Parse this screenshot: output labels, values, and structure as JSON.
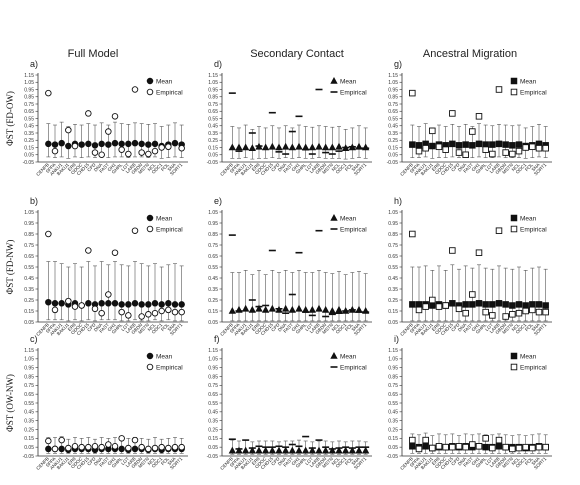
{
  "column_titles": [
    "Full Model",
    "Secondary Contact",
    "Ancestral Migration"
  ],
  "row_labels": [
    "ΦST (FD-OW)",
    "ΦST (FD-NW)",
    "ΦST (OW-NW)"
  ],
  "panel_letters": [
    "a)",
    "b)",
    "c)",
    "d)",
    "e)",
    "f)",
    "g)",
    "h)",
    "i)"
  ],
  "legend_empirical": "Empirical",
  "legend_mean": "Mean",
  "loci": [
    "CENPB",
    "SPPA",
    "ANKU1",
    "BAKU1",
    "ER8",
    "ODOC",
    "CHD15",
    "CPD",
    "DNA",
    "FAST",
    "GH1",
    "GHRL",
    "LGT",
    "LARB",
    "GBDN",
    "MSTN",
    "NCL",
    "ODC1",
    "POL",
    "SNA",
    "SORT1"
  ],
  "colors": {
    "marker": "#111111",
    "whisker": "#555555",
    "axis": "#333333"
  },
  "chart_data": [
    {
      "panel": "a)",
      "type": "scatter",
      "marker": "circle",
      "xlabel": "",
      "ylabel": "ΦST (FD-OW)",
      "ylim": [
        -0.05,
        1.15
      ],
      "yticks": [
        "1.15",
        "1.05",
        "0.95",
        "0.85",
        "0.75",
        "0.65",
        "0.55",
        "0.45",
        "0.35",
        "0.25",
        "0.15",
        "0.05",
        "-0.05"
      ],
      "series": [
        {
          "name": "Mean",
          "values": [
            0.2,
            0.19,
            0.21,
            0.17,
            0.2,
            0.19,
            0.2,
            0.18,
            0.2,
            0.19,
            0.21,
            0.2,
            0.2,
            0.21,
            0.2,
            0.19,
            0.2,
            0.17,
            0.19,
            0.21,
            0.19
          ]
        },
        {
          "name": "Empirical",
          "values": [
            0.9,
            0.1,
            null,
            0.39,
            0.17,
            null,
            0.62,
            0.08,
            0.05,
            0.37,
            0.58,
            0.12,
            0.06,
            0.95,
            0.08,
            0.06,
            0.1,
            0.15,
            0.16,
            null,
            0.14
          ]
        }
      ],
      "upper": [
        0.48,
        0.46,
        0.5,
        0.44,
        0.47,
        0.46,
        0.48,
        0.46,
        0.49,
        0.46,
        0.5,
        0.48,
        0.47,
        0.49,
        0.48,
        0.47,
        0.48,
        0.44,
        0.46,
        0.49,
        0.46
      ],
      "lower": [
        0.02,
        0.01,
        0.02,
        0.0,
        0.02,
        0.01,
        0.02,
        0.01,
        0.02,
        0.01,
        0.02,
        0.02,
        0.01,
        0.02,
        0.02,
        0.01,
        0.02,
        0.0,
        0.01,
        0.02,
        0.01
      ]
    },
    {
      "panel": "b)",
      "type": "scatter",
      "marker": "circle",
      "xlabel": "",
      "ylabel": "ΦST (FD-NW)",
      "ylim": [
        0.05,
        1.05
      ],
      "yticks": [
        "1.05",
        "0.95",
        "0.85",
        "0.75",
        "0.65",
        "0.55",
        "0.45",
        "0.35",
        "0.25",
        "0.15",
        "0.05"
      ],
      "series": [
        {
          "name": "Mean",
          "values": [
            0.23,
            0.22,
            0.22,
            0.21,
            0.22,
            0.2,
            0.22,
            0.21,
            0.22,
            0.22,
            0.22,
            0.21,
            0.21,
            0.22,
            0.21,
            0.21,
            0.22,
            0.21,
            0.22,
            0.21,
            0.21
          ]
        },
        {
          "name": "Empirical",
          "values": [
            0.85,
            0.16,
            null,
            0.24,
            0.19,
            0.2,
            0.7,
            0.17,
            0.13,
            0.3,
            0.68,
            0.14,
            0.11,
            0.88,
            0.1,
            0.12,
            0.13,
            0.15,
            0.16,
            0.14,
            0.14
          ]
        }
      ],
      "upper": [
        0.6,
        0.6,
        0.58,
        0.55,
        0.58,
        0.55,
        0.6,
        0.56,
        0.6,
        0.57,
        0.6,
        0.57,
        0.56,
        0.6,
        0.58,
        0.56,
        0.58,
        0.55,
        0.57,
        0.58,
        0.56
      ],
      "lower": [
        0.07,
        0.07,
        0.07,
        0.06,
        0.07,
        0.06,
        0.07,
        0.06,
        0.07,
        0.07,
        0.07,
        0.06,
        0.06,
        0.07,
        0.06,
        0.06,
        0.07,
        0.06,
        0.07,
        0.06,
        0.06
      ]
    },
    {
      "panel": "c)",
      "type": "scatter",
      "marker": "circle",
      "xlabel": "",
      "ylabel": "ΦST (OW-NW)",
      "ylim": [
        -0.05,
        1.15
      ],
      "yticks": [
        "1.15",
        "1.05",
        "0.95",
        "0.85",
        "0.75",
        "0.65",
        "0.55",
        "0.45",
        "0.35",
        "0.25",
        "0.15",
        "0.05",
        "-0.05"
      ],
      "series": [
        {
          "name": "Mean",
          "values": [
            0.03,
            0.03,
            0.03,
            0.02,
            0.03,
            0.03,
            0.03,
            0.02,
            0.03,
            0.03,
            0.03,
            0.03,
            0.02,
            0.03,
            0.03,
            0.02,
            0.03,
            0.02,
            0.03,
            0.03,
            0.03
          ]
        },
        {
          "name": "Empirical",
          "values": [
            0.12,
            0.03,
            0.13,
            0.04,
            0.06,
            0.05,
            0.05,
            0.06,
            0.05,
            0.08,
            0.06,
            0.15,
            0.04,
            0.13,
            0.05,
            0.03,
            0.04,
            0.05,
            0.04,
            0.05,
            0.05
          ]
        }
      ],
      "upper": [
        0.16,
        0.16,
        0.17,
        0.14,
        0.16,
        0.15,
        0.16,
        0.14,
        0.16,
        0.15,
        0.16,
        0.15,
        0.15,
        0.16,
        0.15,
        0.14,
        0.16,
        0.14,
        0.15,
        0.16,
        0.15
      ],
      "lower": [
        -0.02,
        -0.02,
        -0.02,
        -0.02,
        -0.02,
        -0.02,
        -0.02,
        -0.02,
        -0.02,
        -0.02,
        -0.02,
        -0.02,
        -0.02,
        -0.02,
        -0.02,
        -0.02,
        -0.02,
        -0.02,
        -0.02,
        -0.02,
        -0.02
      ]
    },
    {
      "panel": "d)",
      "type": "scatter",
      "marker": "triangle",
      "xlabel": "",
      "ylabel": "",
      "ylim": [
        -0.05,
        1.15
      ],
      "yticks": [
        "1.15",
        "1.05",
        "0.95",
        "0.85",
        "0.75",
        "0.65",
        "0.55",
        "0.45",
        "0.35",
        "0.25",
        "0.15",
        "0.05",
        "-0.05"
      ],
      "series": [
        {
          "name": "Mean",
          "values": [
            0.15,
            0.15,
            0.15,
            0.14,
            0.16,
            0.15,
            0.16,
            0.15,
            0.16,
            0.15,
            0.16,
            0.15,
            0.15,
            0.16,
            0.15,
            0.15,
            0.16,
            0.14,
            0.15,
            0.16,
            0.15
          ]
        },
        {
          "name": "Empirical",
          "values": [
            0.9,
            0.1,
            null,
            0.35,
            0.17,
            null,
            0.63,
            0.09,
            0.06,
            0.37,
            0.58,
            0.12,
            0.06,
            0.95,
            0.08,
            0.06,
            0.1,
            0.15,
            0.16,
            0.14,
            0.14
          ]
        }
      ],
      "upper": [
        0.44,
        0.42,
        0.46,
        0.4,
        0.44,
        0.42,
        0.45,
        0.42,
        0.45,
        0.42,
        0.46,
        0.44,
        0.43,
        0.45,
        0.44,
        0.43,
        0.44,
        0.4,
        0.42,
        0.45,
        0.42
      ],
      "lower": [
        0.0,
        0.0,
        0.01,
        -0.01,
        0.0,
        0.0,
        0.01,
        0.0,
        0.01,
        0.0,
        0.01,
        0.0,
        0.0,
        0.01,
        0.0,
        0.0,
        0.0,
        -0.01,
        0.0,
        0.01,
        0.0
      ]
    },
    {
      "panel": "e)",
      "type": "scatter",
      "marker": "triangle",
      "xlabel": "",
      "ylabel": "",
      "ylim": [
        0.05,
        1.05
      ],
      "yticks": [
        "1.05",
        "0.95",
        "0.85",
        "0.75",
        "0.65",
        "0.55",
        "0.45",
        "0.35",
        "0.25",
        "0.15",
        "0.05"
      ],
      "series": [
        {
          "name": "Mean",
          "values": [
            0.15,
            0.16,
            0.17,
            0.16,
            0.17,
            0.16,
            0.17,
            0.16,
            0.17,
            0.16,
            0.17,
            0.16,
            0.16,
            0.17,
            0.16,
            0.15,
            0.16,
            0.15,
            0.16,
            0.16,
            0.15
          ]
        },
        {
          "name": "Empirical",
          "values": [
            0.84,
            0.15,
            null,
            0.25,
            0.19,
            0.2,
            0.7,
            0.17,
            0.13,
            0.3,
            0.68,
            0.14,
            0.11,
            0.88,
            0.1,
            0.12,
            0.13,
            0.15,
            0.16,
            0.14,
            0.14
          ]
        }
      ],
      "upper": [
        0.5,
        0.5,
        0.52,
        0.48,
        0.52,
        0.48,
        0.52,
        0.5,
        0.52,
        0.5,
        0.52,
        0.5,
        0.5,
        0.52,
        0.5,
        0.49,
        0.51,
        0.48,
        0.5,
        0.51,
        0.49
      ],
      "lower": [
        0.06,
        0.06,
        0.06,
        0.06,
        0.06,
        0.06,
        0.06,
        0.06,
        0.06,
        0.06,
        0.06,
        0.06,
        0.06,
        0.06,
        0.06,
        0.06,
        0.06,
        0.06,
        0.06,
        0.06,
        0.06
      ]
    },
    {
      "panel": "f)",
      "type": "scatter",
      "marker": "triangle",
      "xlabel": "",
      "ylabel": "",
      "ylim": [
        -0.05,
        1.15
      ],
      "yticks": [
        "1.15",
        "1.05",
        "0.95",
        "0.85",
        "0.75",
        "0.65",
        "0.55",
        "0.45",
        "0.35",
        "0.25",
        "0.15",
        "0.05",
        "-0.05"
      ],
      "series": [
        {
          "name": "Mean",
          "values": [
            0.01,
            0.01,
            0.01,
            0.01,
            0.01,
            0.01,
            0.01,
            0.01,
            0.01,
            0.01,
            0.01,
            0.01,
            0.01,
            0.01,
            0.01,
            0.01,
            0.01,
            0.01,
            0.01,
            0.01,
            0.01
          ]
        },
        {
          "name": "Empirical",
          "values": [
            0.14,
            0.03,
            0.13,
            0.04,
            0.06,
            0.05,
            0.05,
            0.06,
            0.05,
            0.08,
            0.06,
            0.17,
            0.04,
            0.13,
            0.05,
            0.03,
            0.04,
            0.05,
            0.04,
            0.05,
            0.05
          ]
        }
      ],
      "upper": [
        0.13,
        0.12,
        0.13,
        0.11,
        0.12,
        0.12,
        0.12,
        0.11,
        0.12,
        0.12,
        0.13,
        0.12,
        0.11,
        0.12,
        0.12,
        0.11,
        0.12,
        0.11,
        0.12,
        0.12,
        0.11
      ],
      "lower": [
        -0.03,
        -0.03,
        -0.03,
        -0.03,
        -0.03,
        -0.03,
        -0.03,
        -0.03,
        -0.03,
        -0.03,
        -0.03,
        -0.03,
        -0.03,
        -0.03,
        -0.03,
        -0.03,
        -0.03,
        -0.03,
        -0.03,
        -0.03,
        -0.03
      ]
    },
    {
      "panel": "g)",
      "type": "scatter",
      "marker": "square",
      "xlabel": "",
      "ylabel": "",
      "ylim": [
        -0.05,
        1.15
      ],
      "yticks": [
        "1.15",
        "1.05",
        "0.95",
        "0.85",
        "0.75",
        "0.65",
        "0.55",
        "0.45",
        "0.35",
        "0.25",
        "0.15",
        "0.05",
        "-0.05"
      ],
      "series": [
        {
          "name": "Mean",
          "values": [
            0.19,
            0.18,
            0.2,
            0.17,
            0.19,
            0.18,
            0.2,
            0.18,
            0.19,
            0.18,
            0.2,
            0.19,
            0.19,
            0.2,
            0.19,
            0.18,
            0.19,
            0.17,
            0.18,
            0.2,
            0.18
          ]
        },
        {
          "name": "Empirical",
          "values": [
            0.9,
            0.1,
            0.14,
            0.38,
            0.16,
            0.12,
            0.62,
            0.08,
            0.05,
            0.37,
            0.58,
            0.12,
            0.06,
            0.95,
            0.08,
            0.06,
            0.1,
            0.15,
            0.16,
            0.14,
            0.14
          ]
        }
      ],
      "upper": [
        0.46,
        0.44,
        0.48,
        0.42,
        0.46,
        0.44,
        0.47,
        0.44,
        0.47,
        0.44,
        0.48,
        0.46,
        0.45,
        0.47,
        0.46,
        0.45,
        0.46,
        0.42,
        0.44,
        0.47,
        0.44
      ],
      "lower": [
        0.01,
        0.01,
        0.02,
        0.0,
        0.01,
        0.01,
        0.02,
        0.01,
        0.02,
        0.01,
        0.02,
        0.01,
        0.01,
        0.02,
        0.01,
        0.01,
        0.01,
        0.0,
        0.01,
        0.02,
        0.01
      ]
    },
    {
      "panel": "h)",
      "type": "scatter",
      "marker": "square",
      "xlabel": "",
      "ylabel": "",
      "ylim": [
        0.05,
        1.05
      ],
      "yticks": [
        "1.05",
        "0.95",
        "0.85",
        "0.75",
        "0.65",
        "0.55",
        "0.45",
        "0.35",
        "0.25",
        "0.15",
        "0.05"
      ],
      "series": [
        {
          "name": "Mean",
          "values": [
            0.21,
            0.21,
            0.21,
            0.2,
            0.21,
            0.2,
            0.22,
            0.2,
            0.21,
            0.21,
            0.22,
            0.21,
            0.21,
            0.22,
            0.21,
            0.2,
            0.21,
            0.2,
            0.21,
            0.21,
            0.2
          ]
        },
        {
          "name": "Empirical",
          "values": [
            0.85,
            0.16,
            0.19,
            0.25,
            0.19,
            0.2,
            0.7,
            0.17,
            0.13,
            0.3,
            0.68,
            0.14,
            0.11,
            0.88,
            0.1,
            0.12,
            0.13,
            0.15,
            0.16,
            0.14,
            0.14
          ]
        }
      ],
      "upper": [
        0.55,
        0.55,
        0.56,
        0.52,
        0.56,
        0.52,
        0.57,
        0.53,
        0.56,
        0.54,
        0.57,
        0.54,
        0.53,
        0.56,
        0.54,
        0.53,
        0.55,
        0.52,
        0.54,
        0.55,
        0.53
      ],
      "lower": [
        0.06,
        0.06,
        0.06,
        0.06,
        0.06,
        0.06,
        0.06,
        0.06,
        0.06,
        0.06,
        0.06,
        0.06,
        0.06,
        0.06,
        0.06,
        0.06,
        0.06,
        0.06,
        0.06,
        0.06,
        0.06
      ]
    },
    {
      "panel": "i)",
      "type": "scatter",
      "marker": "square",
      "xlabel": "",
      "ylabel": "",
      "ylim": [
        -0.05,
        1.15
      ],
      "yticks": [
        "1.15",
        "1.05",
        "0.95",
        "0.85",
        "0.75",
        "0.65",
        "0.55",
        "0.45",
        "0.35",
        "0.25",
        "0.15",
        "0.05",
        "-0.05"
      ],
      "series": [
        {
          "name": "Mean",
          "values": [
            0.06,
            0.05,
            0.06,
            0.04,
            0.05,
            0.05,
            0.06,
            0.05,
            0.06,
            0.05,
            0.06,
            0.05,
            0.05,
            0.06,
            0.05,
            0.05,
            0.05,
            0.04,
            0.05,
            0.06,
            0.05
          ]
        },
        {
          "name": "Empirical",
          "values": [
            0.13,
            0.03,
            0.13,
            0.04,
            0.06,
            0.05,
            0.05,
            0.06,
            0.05,
            0.08,
            0.06,
            0.15,
            0.04,
            0.13,
            0.05,
            0.03,
            0.04,
            0.05,
            0.04,
            0.05,
            0.05
          ]
        }
      ],
      "upper": [
        0.2,
        0.19,
        0.21,
        0.18,
        0.2,
        0.19,
        0.2,
        0.18,
        0.2,
        0.19,
        0.2,
        0.19,
        0.19,
        0.2,
        0.19,
        0.18,
        0.19,
        0.18,
        0.19,
        0.2,
        0.19
      ],
      "lower": [
        -0.02,
        -0.02,
        -0.02,
        -0.02,
        -0.02,
        -0.02,
        -0.02,
        -0.02,
        -0.02,
        -0.02,
        -0.02,
        -0.02,
        -0.02,
        -0.02,
        -0.02,
        -0.02,
        -0.02,
        -0.02,
        -0.02,
        -0.02,
        -0.02
      ]
    }
  ]
}
